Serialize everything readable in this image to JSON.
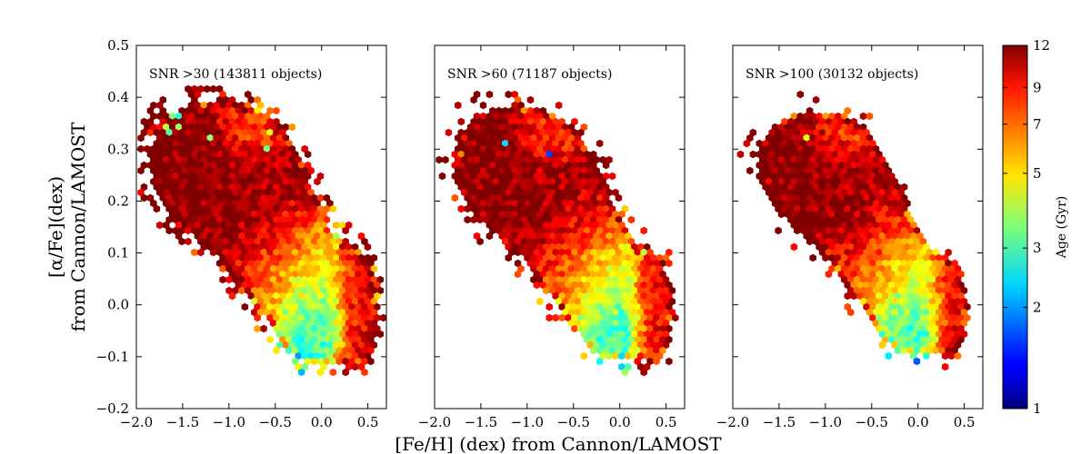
{
  "chart_data": {
    "type": "scatter",
    "style": "hexbin",
    "xlabel": "[Fe/H] (dex) from Cannon/LAMOST",
    "ylabel_line1": "[α/Fe](dex)",
    "ylabel_line2": "from Cannon/LAMOST",
    "xlim": [
      -2.0,
      0.7
    ],
    "ylim": [
      -0.2,
      0.5
    ],
    "xticks": [
      -2.0,
      -1.5,
      -1.0,
      -0.5,
      0.0,
      0.5
    ],
    "xtick_labels": [
      "−2.0",
      "−1.5",
      "−1.0",
      "−0.5",
      "0.0",
      "0.5"
    ],
    "yticks": [
      -0.2,
      -0.1,
      0.0,
      0.1,
      0.2,
      0.3,
      0.4,
      0.5
    ],
    "ytick_labels": [
      "−0.2",
      "−0.1",
      "0.0",
      "0.1",
      "0.2",
      "0.3",
      "0.4",
      "0.5"
    ],
    "panels": [
      {
        "label": "SNR >30 (143811 objects)",
        "density": 1.0,
        "outliers": 1.0
      },
      {
        "label": "SNR >60 (71187 objects)",
        "density": 0.72,
        "outliers": 0.55
      },
      {
        "label": "SNR >100 (30132 objects)",
        "density": 0.5,
        "outliers": 0.3
      }
    ],
    "colorbar": {
      "label": "Age (Gyr)",
      "scale": "log",
      "range": [
        1,
        12
      ],
      "ticks": [
        1,
        2,
        3,
        5,
        7,
        9,
        12
      ],
      "tick_labels": [
        "1",
        "2",
        "3",
        "5",
        "7",
        "9",
        "12"
      ],
      "colormap": "jet"
    },
    "populations": [
      {
        "name_hidden": true,
        "feh_range": [
          -1.9,
          -0.3
        ],
        "alpha_fe_range": [
          0.15,
          0.4
        ],
        "age_gyr": 12
      },
      {
        "name_hidden": true,
        "feh_range": [
          -1.0,
          0.0
        ],
        "alpha_fe_range": [
          0.0,
          0.25
        ],
        "age_gyr": 7
      },
      {
        "name_hidden": true,
        "feh_range": [
          -0.4,
          0.3
        ],
        "alpha_fe_range": [
          -0.1,
          0.1
        ],
        "age_gyr": 3
      },
      {
        "name_hidden": true,
        "feh_range": [
          0.2,
          0.6
        ],
        "alpha_fe_range": [
          -0.1,
          0.1
        ],
        "age_gyr": 9
      }
    ]
  }
}
